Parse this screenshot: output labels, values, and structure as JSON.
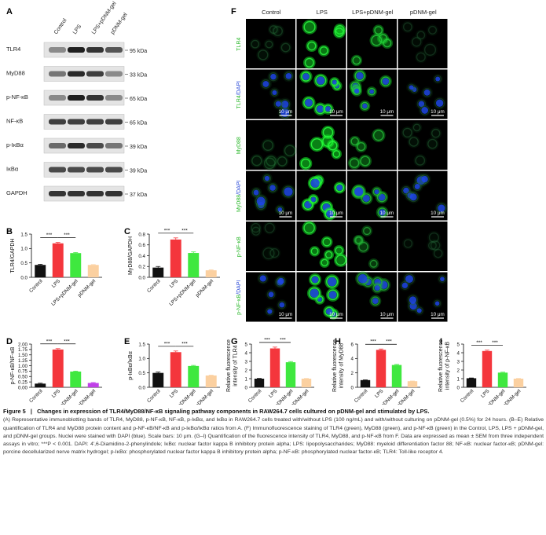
{
  "panel_letters": [
    "A",
    "B",
    "C",
    "D",
    "E",
    "F",
    "G",
    "H",
    "I"
  ],
  "wb": {
    "lanes": [
      "Control",
      "LPS",
      "LPS+pDNM-gel",
      "pDNM-gel"
    ],
    "rows": [
      {
        "protein": "TLR4",
        "kda": "95 kDa",
        "intensities": [
          0.45,
          0.95,
          0.85,
          0.7
        ]
      },
      {
        "protein": "MyD88",
        "kda": "33 kDa",
        "intensities": [
          0.55,
          0.9,
          0.8,
          0.45
        ]
      },
      {
        "protein": "p-NF-κB",
        "kda": "65 kDa",
        "intensities": [
          0.45,
          0.95,
          0.85,
          0.45
        ]
      },
      {
        "protein": "NF-κB",
        "kda": "65 kDa",
        "intensities": [
          0.8,
          0.8,
          0.8,
          0.8
        ]
      },
      {
        "protein": "p-IκBα",
        "kda": "39 kDa",
        "intensities": [
          0.6,
          0.9,
          0.75,
          0.55
        ]
      },
      {
        "protein": "IκBα",
        "kda": "39 kDa",
        "intensities": [
          0.75,
          0.75,
          0.75,
          0.75
        ]
      },
      {
        "protein": "GAPDH",
        "kda": "37 kDa",
        "intensities": [
          0.85,
          0.85,
          0.85,
          0.85
        ]
      }
    ]
  },
  "chart_data": [
    {
      "panel": "B",
      "type": "bar",
      "categories": [
        "Control",
        "LPS",
        "LPS+pDNM-gel",
        "pDNM-gel"
      ],
      "values": [
        0.43,
        1.18,
        0.84,
        0.43
      ],
      "errors": [
        0.02,
        0.03,
        0.02,
        0.01
      ],
      "ylabel": "TLR4/GAPDH",
      "ylim": [
        0,
        1.5
      ],
      "yticks": [
        "0.0",
        "0.5",
        "1.0",
        "1.5"
      ],
      "significance": [
        "***",
        "***"
      ],
      "colors": [
        "#111111",
        "#f4363c",
        "#3fe83f",
        "#fbd0a0"
      ]
    },
    {
      "panel": "C",
      "type": "bar",
      "categories": [
        "Control",
        "LPS",
        "LPS+pDNM-gel",
        "pDNM-gel"
      ],
      "values": [
        0.18,
        0.7,
        0.45,
        0.13
      ],
      "errors": [
        0.02,
        0.03,
        0.02,
        0.01
      ],
      "ylabel": "MyD88/GAPDH",
      "ylim": [
        0,
        0.8
      ],
      "yticks": [
        "0.0",
        "0.2",
        "0.4",
        "0.6",
        "0.8"
      ],
      "significance": [
        "***",
        "***"
      ],
      "colors": [
        "#111111",
        "#f4363c",
        "#3fe83f",
        "#fbd0a0"
      ]
    },
    {
      "panel": "D",
      "type": "bar",
      "categories": [
        "Control",
        "LPS",
        "LPS+pDNM-gel",
        "pDNM-gel"
      ],
      "values": [
        0.17,
        1.75,
        0.73,
        0.2
      ],
      "errors": [
        0.02,
        0.04,
        0.02,
        0.02
      ],
      "ylabel": "p-NF-κB/NF-κB",
      "ylim": [
        0,
        2.0
      ],
      "yticks": [
        "0.00",
        "0.25",
        "0.50",
        "0.75",
        "1.00",
        "1.25",
        "1.50",
        "1.75",
        "2.00"
      ],
      "significance": [
        "***",
        "***"
      ],
      "colors": [
        "#111111",
        "#f4363c",
        "#3fe83f",
        "#c040e8"
      ]
    },
    {
      "panel": "E",
      "type": "bar",
      "categories": [
        "Control",
        "LPS",
        "LPS+pDNM-gel",
        "pDNM-gel"
      ],
      "values": [
        0.5,
        1.22,
        0.74,
        0.41
      ],
      "errors": [
        0.03,
        0.04,
        0.02,
        0.01
      ],
      "ylabel": "p-IκBα/IκBα",
      "ylim": [
        0,
        1.5
      ],
      "yticks": [
        "0.0",
        "0.5",
        "1.0",
        "1.5"
      ],
      "significance": [
        "***",
        "***"
      ],
      "colors": [
        "#111111",
        "#f4363c",
        "#3fe83f",
        "#fbd0a0"
      ]
    },
    {
      "panel": "G",
      "type": "bar",
      "categories": [
        "Control",
        "LPS",
        "LPS+pDNM-gel",
        "pDNM-gel"
      ],
      "values": [
        1.0,
        4.5,
        2.9,
        1.0
      ],
      "errors": [
        0.03,
        0.15,
        0.08,
        0.02
      ],
      "ylabel": "Relative fluorescence intensity of TLR4",
      "ylim": [
        0,
        5
      ],
      "yticks": [
        "0",
        "1",
        "2",
        "3",
        "4",
        "5"
      ],
      "significance": [
        "***",
        "***"
      ],
      "colors": [
        "#111111",
        "#f4363c",
        "#3fe83f",
        "#fbd0a0"
      ]
    },
    {
      "panel": "H",
      "type": "bar",
      "categories": [
        "Control",
        "LPS",
        "LPS+pDNM-gel",
        "pDNM-gel"
      ],
      "values": [
        1.0,
        5.2,
        3.1,
        0.85
      ],
      "errors": [
        0.03,
        0.12,
        0.08,
        0.02
      ],
      "ylabel": "Relative fluorescence intensity of MyD88",
      "ylim": [
        0,
        6
      ],
      "yticks": [
        "0",
        "2",
        "4",
        "6"
      ],
      "significance": [
        "***",
        "***"
      ],
      "colors": [
        "#111111",
        "#f4363c",
        "#3fe83f",
        "#fbd0a0"
      ]
    },
    {
      "panel": "I",
      "type": "bar",
      "categories": [
        "Control",
        "LPS",
        "LPS+pDNM-gel",
        "pDNM-gel"
      ],
      "values": [
        1.05,
        4.2,
        1.7,
        1.0
      ],
      "errors": [
        0.03,
        0.1,
        0.05,
        0.02
      ],
      "ylabel": "Relative fluorescence intensity of p-NF-κB",
      "ylim": [
        0,
        5
      ],
      "yticks": [
        "0",
        "1",
        "2",
        "3",
        "4",
        "5"
      ],
      "significance": [
        "***",
        "***"
      ],
      "colors": [
        "#111111",
        "#f4363c",
        "#3fe83f",
        "#fbd0a0"
      ]
    }
  ],
  "micro": {
    "columns": [
      "Control",
      "LPS",
      "LPS+pDNM-gel",
      "pDNM-gel"
    ],
    "rows": [
      {
        "label": "TLR4",
        "dapi": false,
        "level": [
          0.25,
          0.9,
          0.75,
          0.2
        ]
      },
      {
        "label": "TLR4/DAPI",
        "dapi": true,
        "level": [
          0.25,
          0.9,
          0.75,
          0.2
        ]
      },
      {
        "label": "MyD88",
        "dapi": false,
        "level": [
          0.3,
          0.95,
          0.7,
          0.25
        ]
      },
      {
        "label": "MyD88/DAPI",
        "dapi": true,
        "level": [
          0.3,
          0.95,
          0.7,
          0.25
        ]
      },
      {
        "label": "p-NF-κB",
        "dapi": false,
        "level": [
          0.2,
          0.9,
          0.6,
          0.2
        ]
      },
      {
        "label": "p-NF-κB/DAPI",
        "dapi": true,
        "level": [
          0.2,
          0.9,
          0.6,
          0.2
        ]
      }
    ],
    "scale_bar": "10 μm"
  },
  "caption": {
    "figure_label": "Figure 5",
    "separator": "|",
    "title": "Changes in expression of TLR4/MyD88/NF-κB signaling pathway components in RAW264.7 cells cultured on pDNM-gel and stimulated by LPS.",
    "body": "(A) Representative immunoblotting bands of TLR4, MyD88, p-NF-κB, NF-κB, p-IκBα, and IκBα in RAW264.7 cells treated with/without LPS (100 ng/mL) and with/without culturing on pDNM-gel (0.5%) for 24 hours. (B–E) Relative quantification of TLR4 and MyD88 protein content and p-NF-κB/NF-κB and p-IκBα/IκBα ratios from A. (F) Immunofluorescence staining of TLR4 (green), MyD88 (green), and p-NF-κB (green) in the Control, LPS, LPS + pDNM-gel, and pDNM-gel groups. Nuclei were stained with DAPI (blue). Scale bars: 10 μm. (G–I) Quantification of the fluorescence intensity of TLR4, MyD88, and p-NF-κB from F. Data are expressed as mean ± SEM from three independent assays in vitro; ***P < 0.001. DAPI: 4′,6-Diamidino-2-phenylindole; IκBα: nuclear factor kappa B inhibitory protein alpha; LPS: lipopolysaccharides; MyD88: myeloid differentiation factor 88; NF-κB: nuclear factor-κB; pDNM-gel: porcine decellularized nerve matrix hydrogel; p-IκBα: phosphorylated nuclear factor kappa B inhibitory protein alpha; p-NF-κB: phosphorylated nuclear factor-κB; TLR4: Toll-like receptor 4."
  }
}
